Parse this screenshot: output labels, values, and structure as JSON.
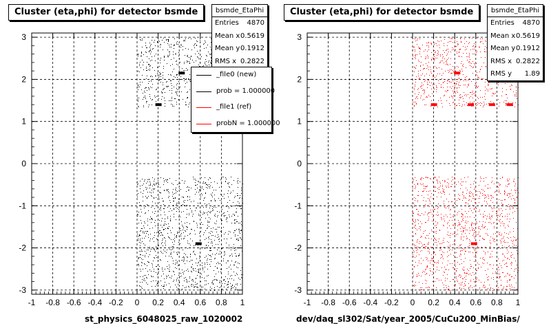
{
  "chart_data": [
    {
      "type": "scatter",
      "title": "Cluster (eta,phi) for detector bsmde",
      "xlabel": "st_physics_6048025_raw_1020002",
      "ylabel": "",
      "xlim": [
        -1,
        1
      ],
      "ylim": [
        -3.1,
        3.1
      ],
      "x_ticks": [
        "-1",
        "-0.8",
        "-0.6",
        "-0.4",
        "-0.2",
        "0",
        "0.2",
        "0.4",
        "0.6",
        "0.8",
        "1"
      ],
      "y_ticks": [
        "-3",
        "-2",
        "-1",
        "0",
        "1",
        "2",
        "3"
      ],
      "grid": true,
      "series_color": "#000000",
      "regions": [
        {
          "x": [
            0.0,
            1.0
          ],
          "y": [
            1.35,
            3.0
          ]
        },
        {
          "x": [
            0.0,
            1.0
          ],
          "y": [
            -3.0,
            -0.3
          ]
        }
      ],
      "hot_spots": [
        {
          "x": 0.2,
          "y": 1.4
        },
        {
          "x": 0.42,
          "y": 2.15
        },
        {
          "x": 0.58,
          "y": -1.9
        }
      ],
      "stats": {
        "name": "bsmde_EtaPhi",
        "rows": [
          {
            "label": "Entries",
            "value": "4870"
          },
          {
            "label": "Mean x",
            "value": "0.5619"
          },
          {
            "label": "Mean y",
            "value": "0.1912"
          },
          {
            "label": "RMS x",
            "value": "0.2822"
          }
        ]
      },
      "legend": {
        "placement": "top-right",
        "entries": [
          {
            "label": "_file0 (new)",
            "color": "#000000"
          },
          {
            "label": "prob = 1.000000",
            "color": "#000000"
          },
          {
            "label": "_file1 (ref)",
            "color": "#ff0000"
          },
          {
            "label": "probN = 1.000000",
            "color": "#ff0000"
          }
        ]
      }
    },
    {
      "type": "scatter",
      "title": "Cluster (eta,phi) for detector bsmde",
      "xlabel": "dev/daq_sl302/Sat/year_2005/CuCu200_MinBias/",
      "ylabel": "",
      "xlim": [
        -1,
        1
      ],
      "ylim": [
        -3.1,
        3.1
      ],
      "x_ticks": [
        "-1",
        "-0.8",
        "-0.6",
        "-0.4",
        "-0.2",
        "0",
        "0.2",
        "0.4",
        "0.6",
        "0.8",
        "1"
      ],
      "y_ticks": [
        "-3",
        "-2",
        "-1",
        "0",
        "1",
        "2",
        "3"
      ],
      "grid": true,
      "series_color": "#ff0000",
      "regions": [
        {
          "x": [
            0.0,
            1.0
          ],
          "y": [
            1.35,
            3.0
          ]
        },
        {
          "x": [
            0.0,
            1.0
          ],
          "y": [
            -3.0,
            -0.3
          ]
        }
      ],
      "hot_spots": [
        {
          "x": 0.2,
          "y": 1.4
        },
        {
          "x": 0.42,
          "y": 2.15
        },
        {
          "x": 0.55,
          "y": 1.4
        },
        {
          "x": 0.75,
          "y": 1.4
        },
        {
          "x": 0.92,
          "y": 1.4
        },
        {
          "x": 0.58,
          "y": -1.9
        }
      ],
      "stats": {
        "name": "bsmde_EtaPhi",
        "rows": [
          {
            "label": "Entries",
            "value": "4870"
          },
          {
            "label": "Mean x",
            "value": "0.5619"
          },
          {
            "label": "Mean y",
            "value": "0.1912"
          },
          {
            "label": "RMS x",
            "value": "0.2822"
          },
          {
            "label": "RMS y",
            "value": "1.89"
          }
        ]
      }
    }
  ]
}
